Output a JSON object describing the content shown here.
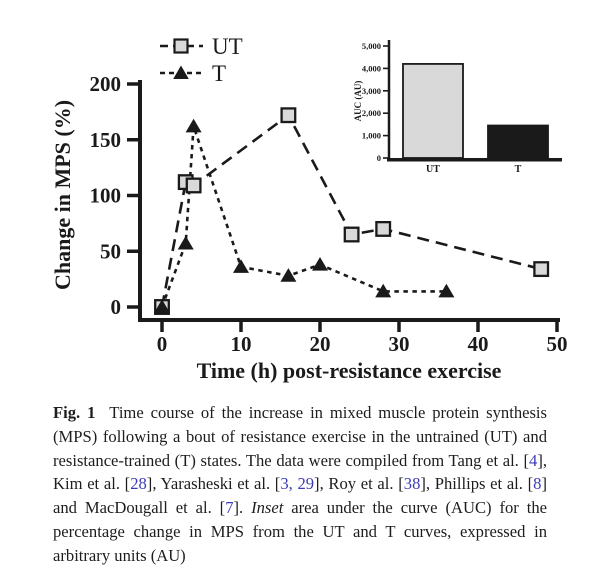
{
  "figure": {
    "caption_segments": [
      {
        "text": "Fig. 1",
        "style": "b"
      },
      {
        "text": "  Time course of the increase in mixed muscle protein synthesis (MPS) following a bout of resistance exercise in the untrained (UT) and resistance-trained (T) states. The data were compiled from Tang et al. [",
        "style": ""
      },
      {
        "text": "4",
        "style": "cite"
      },
      {
        "text": "], Kim et al. [",
        "style": ""
      },
      {
        "text": "28",
        "style": "cite"
      },
      {
        "text": "], Yarasheski et al. [",
        "style": ""
      },
      {
        "text": "3, 29",
        "style": "cite"
      },
      {
        "text": "], Roy et al. [",
        "style": ""
      },
      {
        "text": "38",
        "style": "cite"
      },
      {
        "text": "], Phillips et al. [",
        "style": ""
      },
      {
        "text": "8",
        "style": "cite"
      },
      {
        "text": "] and MacDougall et al. [",
        "style": ""
      },
      {
        "text": "7",
        "style": "cite"
      },
      {
        "text": "]. ",
        "style": ""
      },
      {
        "text": "Inset",
        "style": "i"
      },
      {
        "text": " area under the curve (AUC) for the percentage change in MPS from the UT and T curves, expressed in arbitrary units (AU)",
        "style": ""
      }
    ]
  },
  "colors": {
    "ink": "#1a1a1a",
    "ut_fill": "#d9d9d9",
    "t_fill": "#1a1a1a",
    "citation_blue": "#3b3bb8"
  },
  "chart_data": [
    {
      "id": "main",
      "type": "line",
      "title": "",
      "xlabel": "Time (h) post-resistance exercise",
      "ylabel": "Change in MPS (%)",
      "xlim": [
        0,
        50
      ],
      "ylim": [
        0,
        200
      ],
      "xticks": [
        0,
        10,
        20,
        30,
        40,
        50
      ],
      "yticks": [
        0,
        50,
        100,
        150,
        200
      ],
      "grid": false,
      "legend_position": "top-left",
      "series": [
        {
          "name": "UT",
          "marker": "open-square",
          "marker_fill": "#d9d9d9",
          "line_dash": "long",
          "points": [
            [
              0,
              0
            ],
            [
              3,
              112
            ],
            [
              4,
              109
            ],
            [
              16,
              172
            ],
            [
              24,
              65
            ],
            [
              28,
              70
            ],
            [
              48,
              34
            ]
          ]
        },
        {
          "name": "T",
          "marker": "filled-triangle",
          "marker_fill": "#1a1a1a",
          "line_dash": "short",
          "points": [
            [
              0,
              0
            ],
            [
              3,
              57
            ],
            [
              4,
              162
            ],
            [
              10,
              36
            ],
            [
              16,
              28
            ],
            [
              20,
              38
            ],
            [
              28,
              14
            ],
            [
              36,
              14
            ]
          ]
        }
      ]
    },
    {
      "id": "inset",
      "type": "bar",
      "title": "",
      "xlabel": "",
      "ylabel": "AUC (AU)",
      "categories": [
        "UT",
        "T"
      ],
      "values": [
        4200,
        1450
      ],
      "bar_colors": [
        "#d9d9d9",
        "#1a1a1a"
      ],
      "ylim": [
        0,
        5000
      ],
      "yticks": [
        0,
        1000,
        2000,
        3000,
        4000,
        5000
      ],
      "ytick_labels": [
        "0",
        "1,000",
        "2,000",
        "3,000",
        "4,000",
        "5,000"
      ],
      "grid": false
    }
  ]
}
